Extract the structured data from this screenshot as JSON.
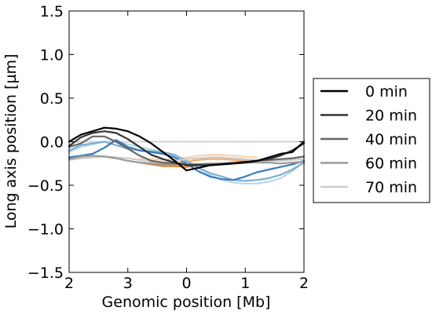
{
  "chart_data": {
    "type": "line",
    "xlabel": "Genomic position [Mb]",
    "ylabel": "Long axis position [µm]",
    "xlim": [
      0,
      4
    ],
    "ylim": [
      -1.5,
      1.5
    ],
    "x_ticks": [
      {
        "pos": 0,
        "label": "2"
      },
      {
        "pos": 1,
        "label": "3"
      },
      {
        "pos": 2,
        "label": "0"
      },
      {
        "pos": 3,
        "label": "1"
      },
      {
        "pos": 4,
        "label": "2"
      }
    ],
    "y_ticks": [
      {
        "value": 1.5,
        "label": "1.5"
      },
      {
        "value": 1.0,
        "label": "1.0"
      },
      {
        "value": 0.5,
        "label": "0.5"
      },
      {
        "value": 0.0,
        "label": "0.0"
      },
      {
        "value": -0.5,
        "label": "−0.5"
      },
      {
        "value": -1.0,
        "label": "−1.0"
      },
      {
        "value": -1.5,
        "label": "−1.5"
      }
    ],
    "reference_line": {
      "y": 0,
      "color": "#d3d3d3"
    },
    "legend": {
      "placement": "right",
      "entries": [
        {
          "label": "0 min",
          "color": "#000000"
        },
        {
          "label": "20 min",
          "color": "#333333"
        },
        {
          "label": "40 min",
          "color": "#666666"
        },
        {
          "label": "60 min",
          "color": "#999999"
        },
        {
          "label": "70 min",
          "color": "#cccccc"
        }
      ]
    },
    "series": [
      {
        "name": "0 min",
        "color": "#000000",
        "x": [
          0.0,
          0.2,
          0.4,
          0.6,
          0.8,
          1.0,
          1.2,
          1.4,
          1.6,
          1.8,
          2.0,
          2.2,
          2.4,
          2.6,
          2.8,
          3.0,
          3.2,
          3.4,
          3.6,
          3.8,
          4.0
        ],
        "y": [
          0.0,
          0.08,
          0.12,
          0.16,
          0.15,
          0.12,
          0.06,
          -0.02,
          -0.12,
          -0.22,
          -0.33,
          -0.3,
          -0.27,
          -0.26,
          -0.25,
          -0.24,
          -0.22,
          -0.18,
          -0.14,
          -0.12,
          0.0
        ]
      },
      {
        "name": "20 min",
        "color": "#333333",
        "x": [
          0.0,
          0.2,
          0.4,
          0.6,
          0.8,
          1.0,
          1.2,
          1.4,
          1.6,
          1.8,
          2.0,
          2.2,
          2.4,
          2.6,
          2.8,
          3.0,
          3.2,
          3.4,
          3.6,
          3.8,
          4.0
        ],
        "y": [
          -0.05,
          0.05,
          0.1,
          0.12,
          0.1,
          0.03,
          -0.06,
          -0.15,
          -0.2,
          -0.24,
          -0.27,
          -0.27,
          -0.27,
          -0.26,
          -0.25,
          -0.23,
          -0.22,
          -0.2,
          -0.16,
          -0.1,
          -0.02
        ]
      },
      {
        "name": "40 min",
        "color": "#666666",
        "x": [
          0.0,
          0.2,
          0.4,
          0.6,
          0.8,
          1.0,
          1.2,
          1.4,
          1.6,
          1.8,
          2.0,
          2.2,
          2.4,
          2.6,
          2.8,
          3.0,
          3.2,
          3.4,
          3.6,
          3.8,
          4.0
        ],
        "y": [
          -0.06,
          -0.02,
          0.06,
          0.06,
          0.0,
          -0.08,
          -0.16,
          -0.22,
          -0.24,
          -0.25,
          -0.26,
          -0.26,
          -0.26,
          -0.25,
          -0.24,
          -0.23,
          -0.22,
          -0.21,
          -0.2,
          -0.19,
          -0.17
        ]
      },
      {
        "name": "60 min",
        "color": "#999999",
        "x": [
          0.0,
          0.2,
          0.4,
          0.6,
          0.8,
          1.0,
          1.2,
          1.4,
          1.6,
          1.8,
          2.0,
          2.2,
          2.4,
          2.6,
          2.8,
          3.0,
          3.2,
          3.4,
          3.6,
          3.8,
          4.0
        ],
        "y": [
          -0.2,
          -0.17,
          -0.16,
          -0.17,
          -0.19,
          -0.22,
          -0.24,
          -0.25,
          -0.26,
          -0.26,
          -0.26,
          -0.26,
          -0.25,
          -0.25,
          -0.24,
          -0.24,
          -0.24,
          -0.24,
          -0.25,
          -0.24,
          -0.23
        ]
      },
      {
        "name": "70 min",
        "color": "#cccccc",
        "x": [
          0.0,
          0.2,
          0.4,
          0.6,
          0.8,
          1.0,
          1.2,
          1.4,
          1.6,
          1.8,
          2.0,
          2.2,
          2.4,
          2.6,
          2.8,
          3.0,
          3.2,
          3.4,
          3.6,
          3.8,
          4.0
        ],
        "y": [
          -0.21,
          -0.19,
          -0.18,
          -0.17,
          -0.18,
          -0.19,
          -0.21,
          -0.23,
          -0.24,
          -0.22,
          -0.2,
          -0.19,
          -0.18,
          -0.18,
          -0.19,
          -0.2,
          -0.21,
          -0.22,
          -0.22,
          -0.21,
          -0.2
        ]
      },
      {
        "name": "",
        "color": "#3a7ab8",
        "x": [
          0.0,
          0.2,
          0.4,
          0.6,
          0.8,
          1.0,
          1.2,
          1.4,
          1.6,
          1.8,
          2.0,
          2.2,
          2.4,
          2.6,
          2.8,
          3.0,
          3.2,
          3.4,
          3.6,
          3.8,
          4.0
        ],
        "y": [
          -0.18,
          -0.16,
          -0.14,
          -0.07,
          0.02,
          -0.06,
          -0.1,
          -0.12,
          -0.14,
          -0.18,
          -0.25,
          -0.34,
          -0.4,
          -0.43,
          -0.44,
          -0.4,
          -0.35,
          -0.32,
          -0.29,
          -0.26,
          -0.22
        ]
      },
      {
        "name": "",
        "color": "#7eaed3",
        "x": [
          0.0,
          0.2,
          0.4,
          0.6,
          0.8,
          1.0,
          1.2,
          1.4,
          1.6,
          1.8,
          2.0,
          2.2,
          2.4,
          2.6,
          2.8,
          3.0,
          3.2,
          3.4,
          3.6,
          3.8,
          4.0
        ],
        "y": [
          -0.1,
          -0.04,
          -0.02,
          0.0,
          -0.04,
          -0.08,
          -0.1,
          -0.11,
          -0.12,
          -0.15,
          -0.22,
          -0.3,
          -0.36,
          -0.4,
          -0.44,
          -0.45,
          -0.44,
          -0.42,
          -0.38,
          -0.32,
          -0.24
        ]
      },
      {
        "name": "",
        "color": "#bcd6ea",
        "x": [
          0.0,
          0.2,
          0.4,
          0.6,
          0.8,
          1.0,
          1.2,
          1.4,
          1.6,
          1.8,
          2.0,
          2.2,
          2.4,
          2.6,
          2.8,
          3.0,
          3.2,
          3.4,
          3.6,
          3.8,
          4.0
        ],
        "y": [
          -0.12,
          -0.06,
          -0.03,
          0.0,
          0.0,
          -0.03,
          -0.06,
          -0.09,
          -0.12,
          -0.16,
          -0.22,
          -0.3,
          -0.38,
          -0.44,
          -0.47,
          -0.48,
          -0.48,
          -0.46,
          -0.42,
          -0.34,
          -0.23
        ]
      },
      {
        "name": "",
        "color": "#e8822c",
        "x": [
          1.2,
          1.4,
          1.6,
          1.8,
          2.0,
          2.2,
          2.4,
          2.6,
          2.8,
          3.0
        ],
        "y": [
          -0.24,
          -0.26,
          -0.28,
          -0.28,
          -0.29,
          -0.27,
          -0.26,
          -0.26,
          -0.25,
          -0.24
        ]
      },
      {
        "name": "",
        "color": "#f3ac6a",
        "x": [
          1.4,
          1.6,
          1.8,
          2.0,
          2.2,
          2.4,
          2.6,
          2.8,
          3.0
        ],
        "y": [
          -0.22,
          -0.24,
          -0.25,
          -0.23,
          -0.21,
          -0.2,
          -0.2,
          -0.21,
          -0.22
        ]
      },
      {
        "name": "",
        "color": "#fbd3ad",
        "x": [
          1.2,
          1.4,
          1.6,
          1.8,
          2.0,
          2.2,
          2.4,
          2.6,
          2.8,
          3.0,
          3.2
        ],
        "y": [
          -0.2,
          -0.2,
          -0.21,
          -0.2,
          -0.18,
          -0.16,
          -0.15,
          -0.15,
          -0.16,
          -0.17,
          -0.18
        ]
      }
    ]
  }
}
